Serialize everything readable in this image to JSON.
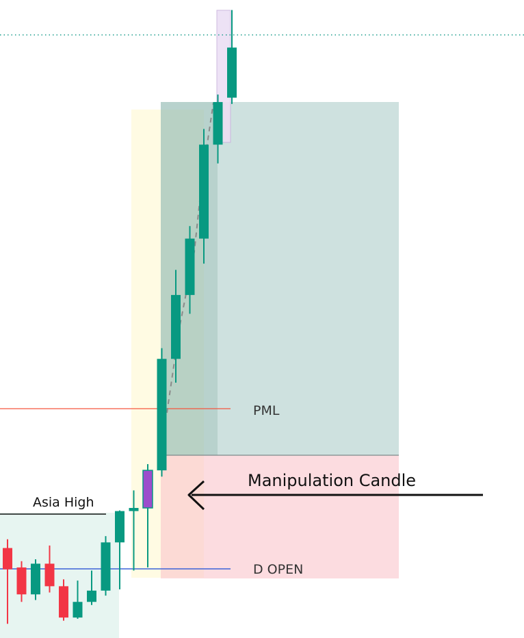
{
  "chart_data": {
    "type": "candlestick",
    "price_range": [
      0,
      100
    ],
    "candles": [
      {
        "open": 13.6,
        "high": 15.0,
        "low": 1.5,
        "close": 10.2,
        "color": "bearish"
      },
      {
        "open": 10.5,
        "high": 11.5,
        "low": 5.0,
        "close": 6.2,
        "color": "bearish"
      },
      {
        "open": 6.2,
        "high": 11.8,
        "low": 5.3,
        "close": 11.1,
        "color": "bullish"
      },
      {
        "open": 11.1,
        "high": 14.0,
        "low": 6.5,
        "close": 7.5,
        "color": "bearish"
      },
      {
        "open": 7.5,
        "high": 8.6,
        "low": 2.0,
        "close": 2.5,
        "color": "bearish"
      },
      {
        "open": 2.5,
        "high": 8.4,
        "low": 2.3,
        "close": 5.0,
        "color": "bullish"
      },
      {
        "open": 5.0,
        "high": 10.0,
        "low": 4.5,
        "close": 6.8,
        "color": "bullish"
      },
      {
        "open": 6.8,
        "high": 15.5,
        "low": 6.0,
        "close": 14.5,
        "color": "bullish"
      },
      {
        "open": 14.5,
        "high": 19.6,
        "low": 7.0,
        "close": 19.5,
        "color": "bullish"
      },
      {
        "open": 19.5,
        "high": 22.8,
        "low": 10.0,
        "close": 20.0,
        "color": "bullish"
      },
      {
        "open": 20.0,
        "high": 27.0,
        "low": 10.5,
        "close": 26.0,
        "color": "manipulation"
      },
      {
        "open": 26.0,
        "high": 45.5,
        "low": 25.0,
        "close": 43.8,
        "color": "bullish"
      },
      {
        "open": 43.8,
        "high": 58.0,
        "low": 40.0,
        "close": 54.0,
        "color": "bullish"
      },
      {
        "open": 54.0,
        "high": 65.0,
        "low": 51.0,
        "close": 63.0,
        "color": "bullish"
      },
      {
        "open": 63.0,
        "high": 80.5,
        "low": 59.0,
        "close": 78.0,
        "color": "bullish"
      },
      {
        "open": 78.0,
        "high": 86.0,
        "low": 75.0,
        "close": 84.8,
        "color": "bullish"
      },
      {
        "open": 85.5,
        "high": 99.5,
        "low": 84.5,
        "close": 93.5,
        "color": "bullish"
      }
    ],
    "levels": [
      {
        "name": "PML",
        "price": 36.2,
        "color": "#f5563f"
      },
      {
        "name": "D OPEN",
        "price": 10.6,
        "color": "#3a62d8"
      },
      {
        "name": "Asia High",
        "price": 18.6,
        "color": "#111111"
      },
      {
        "name": "",
        "price": 95.7,
        "color": "#1a9c8c"
      }
    ],
    "annotations": [
      {
        "text": "PML"
      },
      {
        "text": "D OPEN"
      },
      {
        "text": "Asia High"
      },
      {
        "text": "Manipulation Candle"
      }
    ]
  },
  "labels": {
    "pml": "PML",
    "d_open": "D OPEN",
    "asia_high": "Asia High",
    "manipulation": "Manipulation Candle"
  },
  "colors": {
    "bullish": "#089981",
    "bearish": "#f23645",
    "manipulation": "#9c4dcc",
    "target_zone": "#7fb2ad",
    "risk_zone": "#f7b3bd",
    "session_zone": "#fffbe0",
    "asia_box": "#d9f0ea",
    "highlight_box": "#e6d8f0"
  }
}
